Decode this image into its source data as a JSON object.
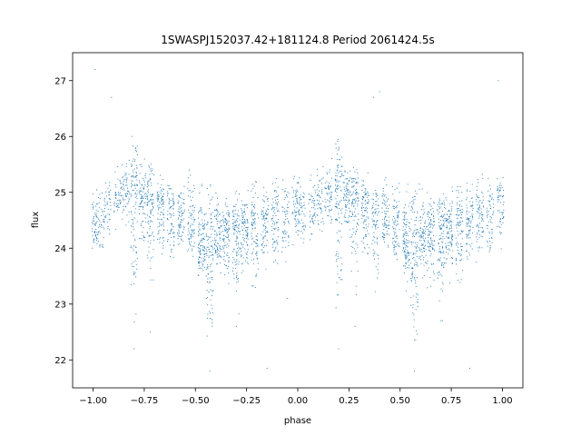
{
  "chart_data": {
    "type": "scatter",
    "title": "1SWASPJ152037.42+181124.8 Period 2061424.5s",
    "xlabel": "phase",
    "ylabel": "flux",
    "xlim": [
      -1.1,
      1.1
    ],
    "ylim": [
      21.5,
      27.5
    ],
    "xticks": [
      -1.0,
      -0.75,
      -0.5,
      -0.25,
      0.0,
      0.25,
      0.5,
      0.75,
      1.0
    ],
    "xtick_labels": [
      "−1.00",
      "−0.75",
      "−0.50",
      "−0.25",
      "0.00",
      "0.25",
      "0.50",
      "0.75",
      "1.00"
    ],
    "yticks": [
      22,
      23,
      24,
      25,
      26,
      27
    ],
    "ytick_labels": [
      "22",
      "23",
      "24",
      "25",
      "26",
      "27"
    ],
    "grid": false,
    "legend": "none",
    "marker_color": "#1f77b4",
    "series": [
      {
        "clusters": [
          {
            "x": -0.99,
            "y_min": 23.9,
            "y_max": 25.3,
            "center": 24.3,
            "n": 60
          },
          {
            "x": -0.96,
            "y_min": 23.8,
            "y_max": 25.2,
            "center": 24.5,
            "n": 40
          },
          {
            "x": -0.93,
            "y_min": 24.0,
            "y_max": 25.4,
            "center": 24.8,
            "n": 40
          },
          {
            "x": -0.88,
            "y_min": 24.2,
            "y_max": 25.6,
            "center": 24.9,
            "n": 50
          },
          {
            "x": -0.84,
            "y_min": 24.3,
            "y_max": 25.9,
            "center": 25.0,
            "n": 60
          },
          {
            "x": -0.8,
            "y_min": 22.3,
            "y_max": 26.3,
            "center": 25.0,
            "n": 110
          },
          {
            "x": -0.76,
            "y_min": 23.9,
            "y_max": 25.8,
            "center": 24.9,
            "n": 80
          },
          {
            "x": -0.72,
            "y_min": 22.9,
            "y_max": 25.7,
            "center": 24.8,
            "n": 100
          },
          {
            "x": -0.67,
            "y_min": 23.4,
            "y_max": 25.4,
            "center": 24.7,
            "n": 90
          },
          {
            "x": -0.62,
            "y_min": 22.9,
            "y_max": 25.3,
            "center": 24.6,
            "n": 80
          },
          {
            "x": -0.57,
            "y_min": 23.8,
            "y_max": 25.4,
            "center": 24.5,
            "n": 80
          },
          {
            "x": -0.52,
            "y_min": 23.6,
            "y_max": 25.8,
            "center": 24.4,
            "n": 80
          },
          {
            "x": -0.47,
            "y_min": 23.2,
            "y_max": 25.3,
            "center": 24.1,
            "n": 110
          },
          {
            "x": -0.43,
            "y_min": 21.8,
            "y_max": 25.5,
            "center": 24.0,
            "n": 110
          },
          {
            "x": -0.39,
            "y_min": 23.3,
            "y_max": 25.3,
            "center": 24.2,
            "n": 90
          },
          {
            "x": -0.35,
            "y_min": 23.1,
            "y_max": 25.1,
            "center": 24.3,
            "n": 100
          },
          {
            "x": -0.3,
            "y_min": 22.6,
            "y_max": 25.2,
            "center": 24.3,
            "n": 110
          },
          {
            "x": -0.26,
            "y_min": 23.3,
            "y_max": 25.2,
            "center": 24.3,
            "n": 100
          },
          {
            "x": -0.21,
            "y_min": 22.9,
            "y_max": 25.4,
            "center": 24.4,
            "n": 90
          },
          {
            "x": -0.16,
            "y_min": 23.5,
            "y_max": 25.3,
            "center": 24.5,
            "n": 80
          },
          {
            "x": -0.11,
            "y_min": 23.4,
            "y_max": 25.5,
            "center": 24.6,
            "n": 80
          },
          {
            "x": -0.06,
            "y_min": 23.5,
            "y_max": 25.5,
            "center": 24.6,
            "n": 60
          },
          {
            "x": -0.01,
            "y_min": 23.8,
            "y_max": 25.6,
            "center": 24.7,
            "n": 60
          },
          {
            "x": 0.02,
            "y_min": 23.9,
            "y_max": 25.3,
            "center": 24.6,
            "n": 50
          },
          {
            "x": 0.07,
            "y_min": 24.0,
            "y_max": 25.4,
            "center": 24.7,
            "n": 50
          },
          {
            "x": 0.11,
            "y_min": 24.0,
            "y_max": 25.6,
            "center": 24.8,
            "n": 50
          },
          {
            "x": 0.15,
            "y_min": 24.1,
            "y_max": 25.8,
            "center": 24.9,
            "n": 60
          },
          {
            "x": 0.2,
            "y_min": 22.4,
            "y_max": 26.3,
            "center": 25.0,
            "n": 110
          },
          {
            "x": 0.24,
            "y_min": 23.9,
            "y_max": 25.8,
            "center": 24.9,
            "n": 80
          },
          {
            "x": 0.28,
            "y_min": 22.9,
            "y_max": 25.8,
            "center": 24.8,
            "n": 100
          },
          {
            "x": 0.33,
            "y_min": 23.4,
            "y_max": 25.5,
            "center": 24.7,
            "n": 90
          },
          {
            "x": 0.38,
            "y_min": 22.9,
            "y_max": 25.3,
            "center": 24.6,
            "n": 80
          },
          {
            "x": 0.43,
            "y_min": 23.8,
            "y_max": 25.4,
            "center": 24.5,
            "n": 80
          },
          {
            "x": 0.48,
            "y_min": 23.6,
            "y_max": 25.8,
            "center": 24.3,
            "n": 80
          },
          {
            "x": 0.53,
            "y_min": 23.1,
            "y_max": 25.3,
            "center": 24.1,
            "n": 110
          },
          {
            "x": 0.57,
            "y_min": 21.8,
            "y_max": 25.5,
            "center": 24.0,
            "n": 110
          },
          {
            "x": 0.61,
            "y_min": 23.3,
            "y_max": 25.3,
            "center": 24.2,
            "n": 90
          },
          {
            "x": 0.65,
            "y_min": 23.1,
            "y_max": 25.1,
            "center": 24.3,
            "n": 100
          },
          {
            "x": 0.7,
            "y_min": 22.6,
            "y_max": 25.2,
            "center": 24.3,
            "n": 110
          },
          {
            "x": 0.74,
            "y_min": 23.3,
            "y_max": 25.2,
            "center": 24.3,
            "n": 100
          },
          {
            "x": 0.79,
            "y_min": 22.9,
            "y_max": 25.4,
            "center": 24.4,
            "n": 90
          },
          {
            "x": 0.84,
            "y_min": 23.5,
            "y_max": 25.3,
            "center": 24.5,
            "n": 80
          },
          {
            "x": 0.89,
            "y_min": 23.4,
            "y_max": 25.5,
            "center": 24.6,
            "n": 80
          },
          {
            "x": 0.94,
            "y_min": 23.5,
            "y_max": 25.5,
            "center": 24.6,
            "n": 60
          },
          {
            "x": 0.99,
            "y_min": 23.8,
            "y_max": 25.6,
            "center": 24.9,
            "n": 60
          }
        ],
        "outliers": [
          {
            "x": -0.99,
            "y": 27.2
          },
          {
            "x": -0.91,
            "y": 26.7
          },
          {
            "x": -0.8,
            "y": 22.2
          },
          {
            "x": -0.72,
            "y": 22.5
          },
          {
            "x": -0.43,
            "y": 21.8
          },
          {
            "x": -0.3,
            "y": 22.6
          },
          {
            "x": -0.15,
            "y": 21.85
          },
          {
            "x": -0.05,
            "y": 23.1
          },
          {
            "x": 0.2,
            "y": 22.2
          },
          {
            "x": 0.28,
            "y": 22.6
          },
          {
            "x": 0.57,
            "y": 21.8
          },
          {
            "x": 0.7,
            "y": 22.7
          },
          {
            "x": 0.84,
            "y": 21.85
          },
          {
            "x": 0.98,
            "y": 27.0
          },
          {
            "x": 0.37,
            "y": 26.7
          },
          {
            "x": 0.4,
            "y": 26.8
          }
        ]
      }
    ]
  }
}
